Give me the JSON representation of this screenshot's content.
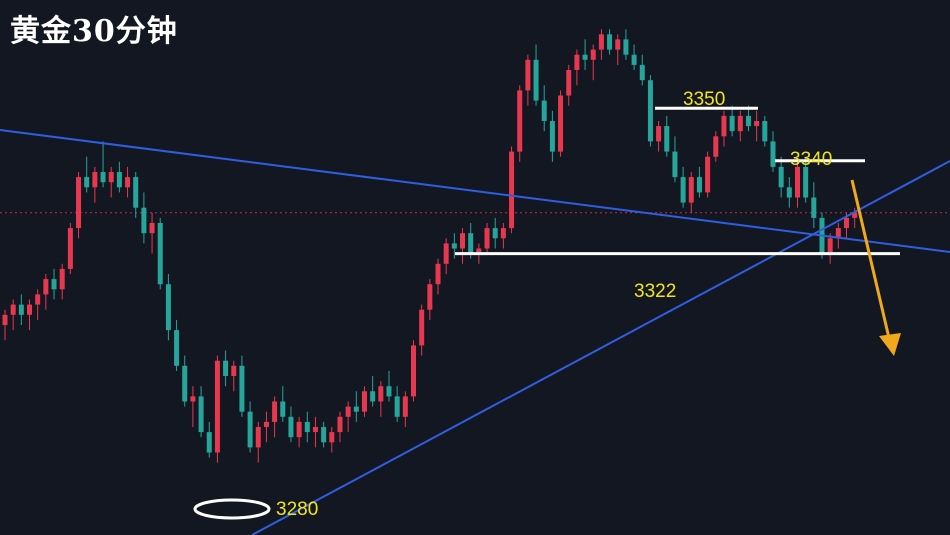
{
  "title": "黄金30分钟",
  "colors": {
    "background": "#131722",
    "up": "#e8384f",
    "down": "#26a69a",
    "trendline": "#2f5fe0",
    "level_line": "#ffffff",
    "level_text": "#f2e61a",
    "forecast_arrow": "#f0a81c",
    "price_line": "#c0303a"
  },
  "chart_data": {
    "type": "candlestick",
    "timeframe": "30分钟",
    "price_range": [
      3274,
      3370
    ],
    "levels": [
      {
        "id": "resistance_3350",
        "label": "3350",
        "price": 3350.5
      },
      {
        "id": "resistance_3340",
        "label": "3340",
        "price": 3340.2
      },
      {
        "id": "support_3322",
        "label": "3322",
        "price": 3322
      },
      {
        "id": "low_3280",
        "label": "3280",
        "price": 3280
      }
    ],
    "trendlines": [
      "descending-resistance",
      "ascending-support"
    ],
    "forecast": "down",
    "candles": [
      [
        3308,
        3311,
        3305,
        3310
      ],
      [
        3310,
        3313,
        3307,
        3312
      ],
      [
        3312,
        3314,
        3308,
        3310
      ],
      [
        3310,
        3313,
        3307,
        3312
      ],
      [
        3312,
        3315,
        3309,
        3314
      ],
      [
        3314,
        3318,
        3311,
        3317
      ],
      [
        3317,
        3319,
        3313,
        3315
      ],
      [
        3315,
        3320,
        3313,
        3319
      ],
      [
        3319,
        3328,
        3318,
        3327
      ],
      [
        3327,
        3338,
        3325,
        3337
      ],
      [
        3337,
        3341,
        3334,
        3335
      ],
      [
        3335,
        3339,
        3332,
        3338
      ],
      [
        3338,
        3344,
        3335,
        3336
      ],
      [
        3336,
        3339,
        3333,
        3338
      ],
      [
        3338,
        3340,
        3334,
        3335
      ],
      [
        3335,
        3339,
        3333,
        3337
      ],
      [
        3337,
        3338,
        3329,
        3331
      ],
      [
        3331,
        3334,
        3324,
        3326
      ],
      [
        3326,
        3330,
        3322,
        3328
      ],
      [
        3328,
        3329,
        3315,
        3316
      ],
      [
        3316,
        3318,
        3305,
        3307
      ],
      [
        3307,
        3309,
        3299,
        3300
      ],
      [
        3300,
        3302,
        3292,
        3293
      ],
      [
        3293,
        3296,
        3288,
        3294
      ],
      [
        3294,
        3296,
        3286,
        3287
      ],
      [
        3287,
        3289,
        3282,
        3283
      ],
      [
        3283,
        3302,
        3281,
        3301
      ],
      [
        3301,
        3303,
        3296,
        3298
      ],
      [
        3298,
        3301,
        3295,
        3300
      ],
      [
        3300,
        3302,
        3290,
        3291
      ],
      [
        3291,
        3293,
        3283,
        3284
      ],
      [
        3284,
        3289,
        3281,
        3288
      ],
      [
        3288,
        3291,
        3285,
        3289
      ],
      [
        3289,
        3294,
        3286,
        3293
      ],
      [
        3293,
        3296,
        3289,
        3290
      ],
      [
        3290,
        3292,
        3285,
        3286
      ],
      [
        3286,
        3290,
        3284,
        3289
      ],
      [
        3289,
        3291,
        3285,
        3287
      ],
      [
        3287,
        3290,
        3284,
        3288
      ],
      [
        3288,
        3289,
        3284,
        3285
      ],
      [
        3285,
        3288,
        3283,
        3287
      ],
      [
        3287,
        3291,
        3285,
        3290
      ],
      [
        3290,
        3293,
        3287,
        3292
      ],
      [
        3292,
        3295,
        3289,
        3291
      ],
      [
        3291,
        3296,
        3290,
        3295
      ],
      [
        3295,
        3298,
        3292,
        3293
      ],
      [
        3293,
        3297,
        3290,
        3296
      ],
      [
        3296,
        3299,
        3293,
        3294
      ],
      [
        3294,
        3296,
        3289,
        3290
      ],
      [
        3290,
        3295,
        3288,
        3294
      ],
      [
        3294,
        3305,
        3293,
        3304
      ],
      [
        3304,
        3312,
        3302,
        3311
      ],
      [
        3311,
        3317,
        3309,
        3316
      ],
      [
        3316,
        3321,
        3314,
        3320
      ],
      [
        3320,
        3325,
        3318,
        3324
      ],
      [
        3324,
        3326,
        3321,
        3323
      ],
      [
        3323,
        3327,
        3320,
        3326
      ],
      [
        3326,
        3328,
        3321,
        3322
      ],
      [
        3322,
        3324,
        3320,
        3323
      ],
      [
        3323,
        3328,
        3322,
        3327
      ],
      [
        3327,
        3329,
        3323,
        3325
      ],
      [
        3325,
        3328,
        3323,
        3327
      ],
      [
        3327,
        3343,
        3326,
        3342
      ],
      [
        3342,
        3355,
        3340,
        3354
      ],
      [
        3354,
        3361,
        3351,
        3360
      ],
      [
        3360,
        3363,
        3351,
        3352
      ],
      [
        3352,
        3355,
        3346,
        3348
      ],
      [
        3348,
        3350,
        3340,
        3342
      ],
      [
        3342,
        3354,
        3341,
        3353
      ],
      [
        3353,
        3359,
        3351,
        3358
      ],
      [
        3358,
        3362,
        3355,
        3361
      ],
      [
        3361,
        3364,
        3358,
        3360
      ],
      [
        3360,
        3363,
        3356,
        3362
      ],
      [
        3362,
        3366,
        3360,
        3365
      ],
      [
        3365,
        3366,
        3361,
        3362
      ],
      [
        3362,
        3365,
        3359,
        3364
      ],
      [
        3364,
        3366,
        3360,
        3361
      ],
      [
        3361,
        3363,
        3358,
        3359
      ],
      [
        3359,
        3361,
        3355,
        3356
      ],
      [
        3356,
        3357,
        3343,
        3344
      ],
      [
        3344,
        3348,
        3342,
        3347
      ],
      [
        3347,
        3349,
        3341,
        3342
      ],
      [
        3342,
        3345,
        3336,
        3337
      ],
      [
        3337,
        3339,
        3331,
        3332
      ],
      [
        3332,
        3338,
        3330,
        3337
      ],
      [
        3337,
        3339,
        3333,
        3334
      ],
      [
        3334,
        3342,
        3333,
        3341
      ],
      [
        3341,
        3346,
        3340,
        3345
      ],
      [
        3345,
        3350,
        3343,
        3349
      ],
      [
        3349,
        3351,
        3345,
        3346
      ],
      [
        3346,
        3350,
        3344,
        3349
      ],
      [
        3349,
        3351,
        3346,
        3347
      ],
      [
        3347,
        3350,
        3344,
        3348
      ],
      [
        3348,
        3349,
        3343,
        3344
      ],
      [
        3344,
        3346,
        3338,
        3339
      ],
      [
        3339,
        3341,
        3333,
        3335
      ],
      [
        3335,
        3337,
        3331,
        3333
      ],
      [
        3333,
        3340,
        3331,
        3339
      ],
      [
        3339,
        3341,
        3332,
        3333
      ],
      [
        3333,
        3336,
        3327,
        3329
      ],
      [
        3329,
        3330,
        3321,
        3322
      ],
      [
        3322,
        3326,
        3320,
        3325
      ],
      [
        3325,
        3328,
        3323,
        3327
      ],
      [
        3327,
        3330,
        3325,
        3329
      ],
      [
        3329,
        3331,
        3327,
        3330
      ]
    ]
  }
}
